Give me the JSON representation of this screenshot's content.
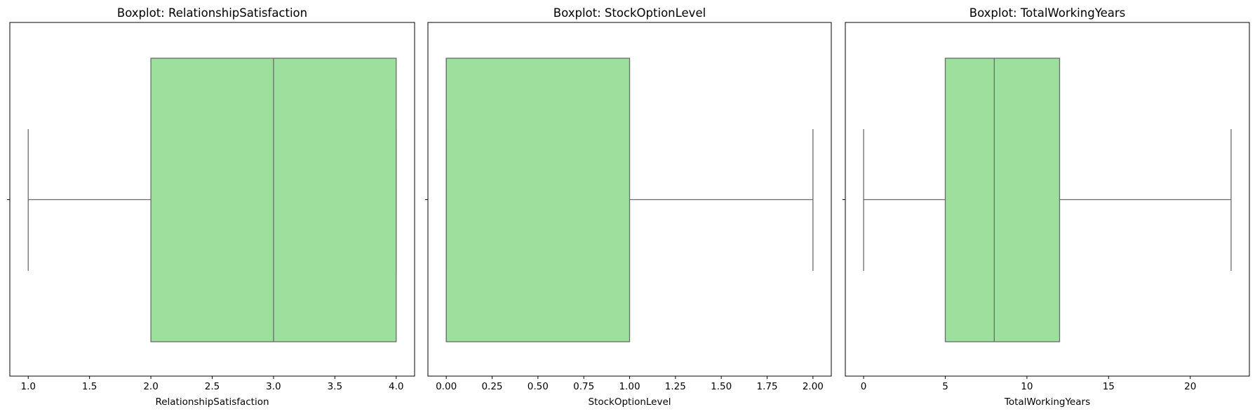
{
  "colors": {
    "box_fill": "#9de09d",
    "line": "#6b6b6b",
    "frame": "#000000"
  },
  "chart_data": [
    {
      "type": "boxplot",
      "title": "Boxplot: RelationshipSatisfaction",
      "xlabel": "RelationshipSatisfaction",
      "ylabel": "",
      "xlim": [
        0.85,
        4.15
      ],
      "ticks": [
        1.0,
        1.5,
        2.0,
        2.5,
        3.0,
        3.5,
        4.0
      ],
      "tick_labels": [
        "1.0",
        "1.5",
        "2.0",
        "2.5",
        "3.0",
        "3.5",
        "4.0"
      ],
      "box": {
        "whisker_low": 1.0,
        "q1": 2.0,
        "median": 3.0,
        "q3": 4.0,
        "whisker_high": 4.0
      }
    },
    {
      "type": "boxplot",
      "title": "Boxplot: StockOptionLevel",
      "xlabel": "StockOptionLevel",
      "ylabel": "",
      "xlim": [
        -0.1,
        2.1
      ],
      "ticks": [
        0.0,
        0.25,
        0.5,
        0.75,
        1.0,
        1.25,
        1.5,
        1.75,
        2.0
      ],
      "tick_labels": [
        "0.00",
        "0.25",
        "0.50",
        "0.75",
        "1.00",
        "1.25",
        "1.50",
        "1.75",
        "2.00"
      ],
      "box": {
        "whisker_low": 0.0,
        "q1": 0.0,
        "median": 0.0,
        "q3": 1.0,
        "whisker_high": 2.0
      }
    },
    {
      "type": "boxplot",
      "title": "Boxplot: TotalWorkingYears",
      "xlabel": "TotalWorkingYears",
      "ylabel": "",
      "xlim": [
        -1.12,
        23.62
      ],
      "ticks": [
        0,
        5,
        10,
        15,
        20
      ],
      "tick_labels": [
        "0",
        "5",
        "10",
        "15",
        "20"
      ],
      "box": {
        "whisker_low": 0,
        "q1": 5,
        "median": 8,
        "q3": 12,
        "whisker_high": 22.5
      }
    }
  ]
}
